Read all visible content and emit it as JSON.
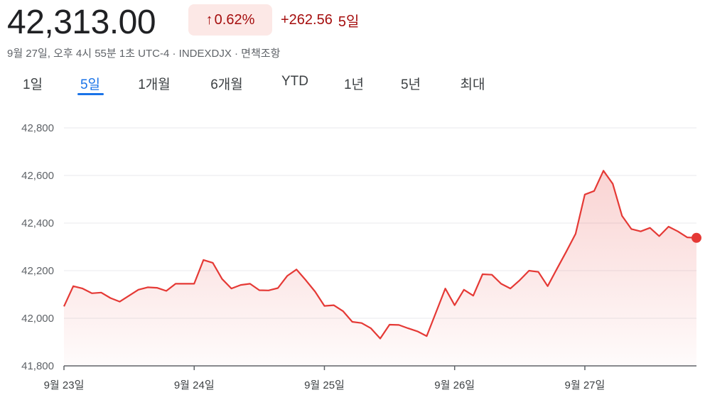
{
  "quote": {
    "price": "42,313.00",
    "change_percent": "0.62%",
    "change_arrow": "↑",
    "change_value": "+262.56",
    "change_period": "5일",
    "meta": "9월 27일, 오후 4시 55분 1초 UTC-4 · INDEXDJX · 면책조항"
  },
  "tabs": [
    {
      "label": "1일",
      "active": false
    },
    {
      "label": "5일",
      "active": true
    },
    {
      "label": "1개월",
      "active": false
    },
    {
      "label": "6개월",
      "active": false
    },
    {
      "label": "YTD",
      "active": false
    },
    {
      "label": "1년",
      "active": false
    },
    {
      "label": "5년",
      "active": false
    },
    {
      "label": "최대",
      "active": false
    }
  ],
  "colors": {
    "line": "#e53935",
    "fill": "#fde2e1",
    "accent": "#1a73e8",
    "negative_text": "#a50e0e",
    "badge_bg": "#fce8e6"
  },
  "chart_data": {
    "type": "line",
    "title": "",
    "xlabel": "",
    "ylabel": "",
    "ylim": [
      41800,
      42800
    ],
    "yticks": [
      {
        "value": 42800,
        "label": "42,800"
      },
      {
        "value": 42600,
        "label": "42,600"
      },
      {
        "value": 42400,
        "label": "42,400"
      },
      {
        "value": 42200,
        "label": "42,200"
      },
      {
        "value": 42000,
        "label": "42,000"
      },
      {
        "value": 41800,
        "label": "41,800"
      }
    ],
    "xticks": [
      {
        "index": 0,
        "label": "9월 23일"
      },
      {
        "index": 14,
        "label": "9월 24일"
      },
      {
        "index": 28,
        "label": "9월 25일"
      },
      {
        "index": 42,
        "label": "9월 26일"
      },
      {
        "index": 56,
        "label": "9월 27일"
      }
    ],
    "x_count": 69,
    "grid": true,
    "series": [
      {
        "values": [
          42050,
          42135,
          42125,
          42105,
          42108,
          42085,
          42070,
          42095,
          42120,
          42130,
          42128,
          42115,
          42145,
          42145,
          42145,
          42245,
          42233,
          42165,
          42125,
          42140,
          42145,
          42118,
          42117,
          42127,
          42178,
          42205,
          42160,
          42112,
          42052,
          42055,
          42030,
          41985,
          41980,
          41958,
          41915,
          41973,
          41972,
          41958,
          41945,
          41925,
          42025,
          42125,
          42055,
          42120,
          42095,
          42185,
          42183,
          42145,
          42125,
          42160,
          42200,
          42195,
          42135,
          42208,
          42280,
          42355,
          42520,
          42535,
          42620,
          42565,
          42430,
          42375,
          42365,
          42380,
          42345,
          42385,
          42365,
          42340,
          42338
        ]
      }
    ]
  }
}
